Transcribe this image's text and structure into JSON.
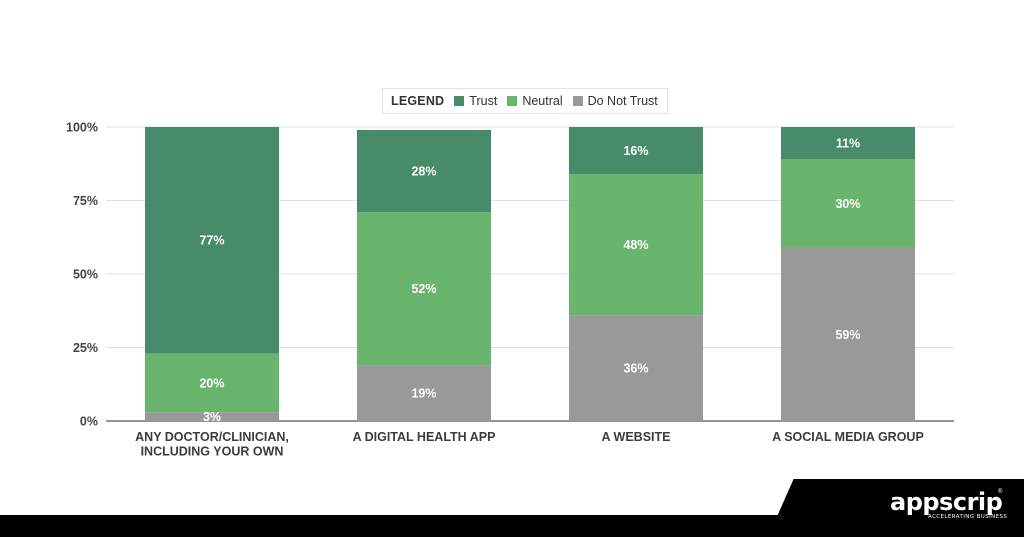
{
  "chart_data": {
    "type": "bar",
    "stacked": true,
    "categories": [
      [
        "ANY DOCTOR/CLINICIAN,",
        "INCLUDING YOUR OWN"
      ],
      [
        "A DIGITAL HEALTH APP"
      ],
      [
        "A WEBSITE"
      ],
      [
        "A SOCIAL MEDIA GROUP"
      ]
    ],
    "series": [
      {
        "name": "Do Not Trust",
        "color": "#999999",
        "values": [
          3,
          19,
          36,
          59
        ]
      },
      {
        "name": "Neutral",
        "color": "#6ab56d",
        "values": [
          20,
          52,
          48,
          30
        ]
      },
      {
        "name": "Trust",
        "color": "#488b6b",
        "values": [
          77,
          28,
          16,
          11
        ]
      }
    ],
    "ylim": [
      0,
      100
    ],
    "yticks": [
      "0%",
      "25%",
      "50%",
      "75%",
      "100%"
    ],
    "grid": true,
    "legend_position": "top-center"
  },
  "legend": {
    "title": "LEGEND",
    "entries": [
      {
        "label": "Trust",
        "color": "#488b6b"
      },
      {
        "label": "Neutral",
        "color": "#6ab56d"
      },
      {
        "label": "Do Not Trust",
        "color": "#999999"
      }
    ]
  },
  "brand": {
    "logo": "appscrip",
    "tagline": "ACCELERATING BUSINESS",
    "registered": "®"
  }
}
